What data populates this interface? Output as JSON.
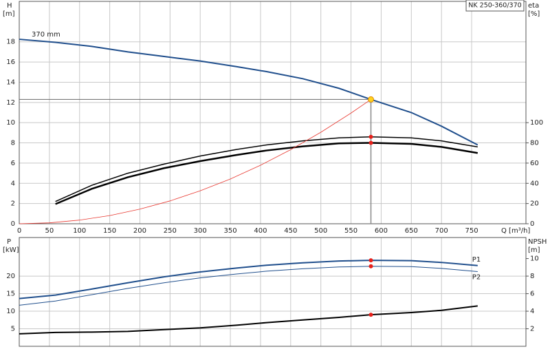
{
  "chart_data": [
    {
      "type": "line",
      "title": "NK 250-360/370",
      "ylabel": "H",
      "yunit": "[m]",
      "y2label": "eta",
      "y2unit": "[%]",
      "xlabel": "Q [m³/h]",
      "x": [
        0,
        60,
        120,
        180,
        240,
        300,
        360,
        410,
        470,
        530,
        583,
        650,
        700,
        760
      ],
      "xlim": [
        0,
        840
      ],
      "xticks": [
        0,
        50,
        100,
        150,
        200,
        250,
        300,
        350,
        400,
        450,
        500,
        550,
        600,
        650,
        700,
        750
      ],
      "xtick_labels": true,
      "ylim": [
        0,
        22
      ],
      "yticks": [
        0,
        2,
        4,
        6,
        8,
        10,
        12,
        14,
        16,
        18
      ],
      "y2lim": [
        0,
        220
      ],
      "y2ticks": [
        0,
        20,
        40,
        60,
        80,
        100
      ],
      "grid": true,
      "series": [
        {
          "name": "370 mm",
          "color": "#1f4e8c",
          "width": 2,
          "label_at": "start",
          "values": [
            18.25,
            17.95,
            17.55,
            17.0,
            16.55,
            16.1,
            15.55,
            15.05,
            14.35,
            13.4,
            12.3,
            11.0,
            9.65,
            7.8
          ]
        },
        {
          "color": "#000000",
          "width": 1.5,
          "axis": "y2",
          "values": [
            null,
            22,
            38,
            50,
            59,
            67,
            73.5,
            78,
            82,
            85,
            86,
            85,
            82,
            76
          ]
        },
        {
          "color": "#000000",
          "width": 2.5,
          "axis": "y2",
          "values": [
            null,
            19.5,
            34.5,
            46,
            55,
            62,
            68,
            72.5,
            76.5,
            79.5,
            80,
            79,
            76,
            70
          ]
        },
        {
          "color": "#e8362e",
          "width": 0.8,
          "x": [
            0,
            50,
            100,
            150,
            200,
            250,
            300,
            350,
            400,
            450,
            500,
            550,
            583
          ],
          "values": [
            0,
            0.09,
            0.36,
            0.81,
            1.45,
            2.26,
            3.26,
            4.43,
            5.79,
            7.33,
            9.05,
            10.95,
            12.3
          ]
        }
      ],
      "points": [
        {
          "x": 583,
          "y": 12.3,
          "color": "#ffd21f",
          "guides": true
        },
        {
          "x": 583,
          "y": 86,
          "axis": "y2",
          "color": "#e8201a"
        },
        {
          "x": 583,
          "y": 80,
          "axis": "y2",
          "color": "#e8201a"
        }
      ]
    },
    {
      "type": "line",
      "ylabel": "P",
      "yunit": "[kW]",
      "y2label": "NPSH",
      "y2unit": "[m]",
      "x": [
        0,
        60,
        120,
        180,
        240,
        300,
        360,
        410,
        470,
        530,
        583,
        650,
        700,
        760
      ],
      "xlim": [
        0,
        840
      ],
      "xticks": [
        0,
        50,
        100,
        150,
        200,
        250,
        300,
        350,
        400,
        450,
        500,
        550,
        600,
        650,
        700,
        750
      ],
      "xtick_labels": false,
      "ylim": [
        0,
        31
      ],
      "yticks": [
        5,
        10,
        15,
        20
      ],
      "y2lim": [
        0,
        12.4
      ],
      "y2ticks": [
        2,
        4,
        6,
        8,
        10
      ],
      "grid": true,
      "series": [
        {
          "name": "P1",
          "color": "#1f4e8c",
          "width": 2,
          "label_at": "end-above",
          "values": [
            13.6,
            14.6,
            16.3,
            18.1,
            19.8,
            21.2,
            22.3,
            23.1,
            23.8,
            24.3,
            24.5,
            24.4,
            23.9,
            23.0
          ]
        },
        {
          "name": "P2",
          "color": "#1f4e8c",
          "width": 1,
          "label_at": "end-below",
          "values": [
            11.7,
            12.9,
            14.7,
            16.5,
            18.1,
            19.5,
            20.6,
            21.4,
            22.1,
            22.6,
            22.8,
            22.7,
            22.2,
            21.3
          ]
        },
        {
          "color": "#000000",
          "width": 2,
          "axis": "y2",
          "values": [
            1.42,
            1.58,
            1.62,
            1.7,
            1.9,
            2.1,
            2.4,
            2.7,
            3.0,
            3.3,
            3.6,
            3.85,
            4.1,
            4.6
          ]
        }
      ],
      "points": [
        {
          "x": 583,
          "y": 24.5,
          "color": "#e8201a"
        },
        {
          "x": 583,
          "y": 22.8,
          "color": "#e8201a"
        },
        {
          "x": 583,
          "y": 3.6,
          "axis": "y2",
          "color": "#e8201a"
        }
      ]
    }
  ]
}
